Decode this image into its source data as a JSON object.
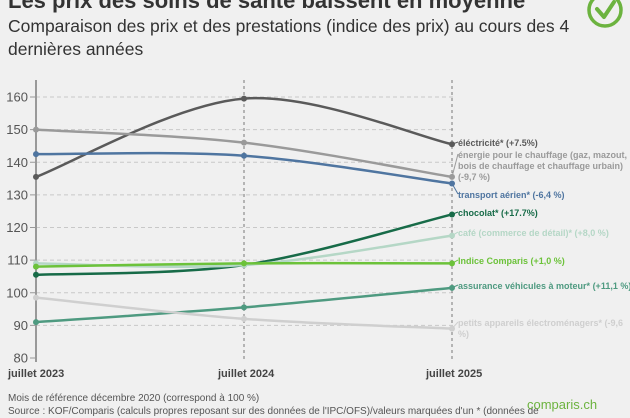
{
  "header": {
    "title": "Les prix des soins de santé baissent en moyenne",
    "subtitle": "Comparaison des prix et des prestations (indice des prix) au cours des 4 dernières années"
  },
  "footer": {
    "reference": "Mois de référence décembre 2020 (correspond à 100 %)",
    "source": "Source : KOF/Comparis (calculs propres reposant sur des données de l'IPC/OFS)/valeurs marquées d'un * (données de",
    "brand": "comparis.ch"
  },
  "colors": {
    "accent": "#6cb33f"
  },
  "chart_data": {
    "type": "line",
    "title": "Les prix des soins de santé baissent en moyenne",
    "x": [
      "juillet 2023",
      "juillet 2024",
      "juillet 2025"
    ],
    "ylim": [
      80,
      160
    ],
    "yticks": [
      80,
      90,
      100,
      110,
      120,
      130,
      140,
      150,
      160
    ],
    "grid": true,
    "legend": "right",
    "series": [
      {
        "name": "éléctricité* (+7.5%)",
        "values": [
          135.5,
          159.5,
          145.5
        ],
        "color": "#5a5a5a"
      },
      {
        "name": "énergie pour le chauffage (gaz, mazout, bois de chauffage et chauffage urbain) (-9,7 %)",
        "label_lines": [
          "énergie pour le chauffage (gaz, mazout,",
          "bois de chauffage et chauffage urbain)",
          "(-9,7 %)"
        ],
        "values": [
          150,
          146,
          135.5
        ],
        "color": "#9a9a9a"
      },
      {
        "name": "transport aérien* (-6,4 %)",
        "values": [
          142.5,
          142,
          133.5
        ],
        "color": "#4f75a0"
      },
      {
        "name": "chocolat* (+17.7%)",
        "values": [
          105.5,
          108.5,
          124
        ],
        "color": "#176b48"
      },
      {
        "name": "café (commerce de détail)* (+8,0 %)",
        "values": [
          109,
          108.5,
          117.5
        ],
        "color": "#b5d7c6"
      },
      {
        "name": "Indice Comparis (+1,0 %)",
        "values": [
          108,
          109,
          109
        ],
        "color": "#6cc23a"
      },
      {
        "name": "assurance véhicules à moteur* (+11,1 %)",
        "values": [
          91,
          95.5,
          101.5
        ],
        "color": "#4e9a80"
      },
      {
        "name": "petits appareils électroménagers* (-9,6 %)",
        "label_lines": [
          "petits appareils électroménagers* (-9,6",
          "%)"
        ],
        "values": [
          98.5,
          92,
          89
        ],
        "color": "#cfcfcf"
      }
    ]
  }
}
